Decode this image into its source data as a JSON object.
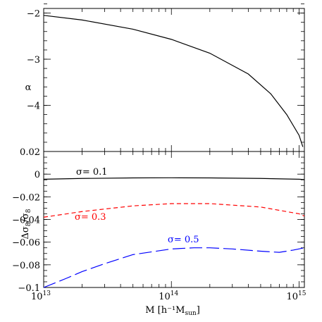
{
  "chart_data": [
    {
      "type": "line",
      "panel": "top",
      "xscale": "log",
      "xlim": [
        10000000000000.0,
        1100000000000000.0
      ],
      "ylim": [
        -5,
        -1.9
      ],
      "yticks": [
        -2,
        -3,
        -4
      ],
      "ytick_labels": [
        "−2",
        "−3",
        "−4"
      ],
      "ylabel": "α",
      "xlabel": "",
      "series": [
        {
          "color": "#000000",
          "dash": "solid",
          "x": [
            10000000000000.0,
            20000000000000.0,
            50000000000000.0,
            100000000000000.0,
            200000000000000.0,
            400000000000000.0,
            600000000000000.0,
            800000000000000.0,
            1000000000000000.0,
            1070000000000000.0
          ],
          "y": [
            -2.05,
            -2.15,
            -2.35,
            -2.57,
            -2.87,
            -3.32,
            -3.75,
            -4.2,
            -4.65,
            -4.9
          ]
        }
      ]
    },
    {
      "type": "line",
      "panel": "bottom",
      "xscale": "log",
      "xlim": [
        10000000000000.0,
        1100000000000000.0
      ],
      "ylim": [
        -0.1,
        0.02
      ],
      "yticks": [
        0.02,
        0,
        -0.02,
        -0.04,
        -0.06,
        -0.08,
        -0.1
      ],
      "ytick_labels": [
        "0.02",
        "0",
        "−0.02",
        "−0.04",
        "−0.06",
        "−0.08",
        "−0.1"
      ],
      "xticks": [
        10000000000000.0,
        100000000000000.0,
        1000000000000000.0
      ],
      "xtick_labels": [
        "10",
        "10",
        "10"
      ],
      "xtick_exponents": [
        "13",
        "14",
        "15"
      ],
      "ylabel": "Δσ8/σ8",
      "xlabel": "M  [h⁻¹M",
      "xlabel_sub": "sun",
      "xlabel_end": "]",
      "series": [
        {
          "label": "σ= 0.1",
          "color": "#000000",
          "dash": "solid",
          "x": [
            10000000000000.0,
            20000000000000.0,
            50000000000000.0,
            100000000000000.0,
            200000000000000.0,
            500000000000000.0,
            1000000000000000.0,
            1100000000000000.0
          ],
          "y": [
            -0.0045,
            -0.0038,
            -0.0033,
            -0.0032,
            -0.0033,
            -0.0038,
            -0.0045,
            -0.0048
          ]
        },
        {
          "label": "σ= 0.3",
          "color": "#ff0000",
          "dash": "short",
          "x": [
            10000000000000.0,
            20000000000000.0,
            50000000000000.0,
            100000000000000.0,
            200000000000000.0,
            500000000000000.0,
            1000000000000000.0,
            1100000000000000.0
          ],
          "y": [
            -0.038,
            -0.033,
            -0.028,
            -0.026,
            -0.026,
            -0.029,
            -0.035,
            -0.037
          ]
        },
        {
          "label": "σ= 0.5",
          "color": "#0000ff",
          "dash": "long",
          "x": [
            10000000000000.0,
            15000000000000.0,
            20000000000000.0,
            30000000000000.0,
            50000000000000.0,
            100000000000000.0,
            150000000000000.0,
            200000000000000.0,
            300000000000000.0,
            500000000000000.0,
            700000000000000.0,
            900000000000000.0,
            1100000000000000.0
          ],
          "y": [
            -0.1,
            -0.092,
            -0.086,
            -0.079,
            -0.071,
            -0.066,
            -0.065,
            -0.065,
            -0.066,
            -0.068,
            -0.069,
            -0.067,
            -0.065
          ]
        }
      ]
    }
  ]
}
